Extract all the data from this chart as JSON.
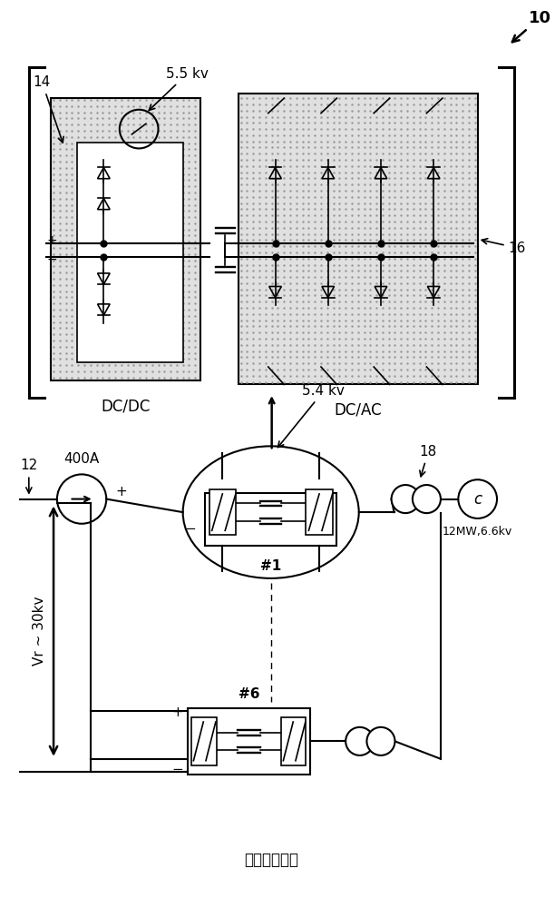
{
  "bg_color": "#ffffff",
  "line_color": "#000000",
  "dot_bg": "#e0e0e0",
  "label_10": "10",
  "label_14": "14",
  "label_55kv": "5.5 kv",
  "label_16": "16",
  "label_dcdc": "DC/DC",
  "label_dcac": "DC/AC",
  "label_54kv": "5.4 kv",
  "label_400A": "400A",
  "label_12": "12",
  "label_18": "18",
  "label_12MW": "12MW,6.6kv",
  "label_vr": "Vr ~ 30kv",
  "label_1": "#1",
  "label_6": "#6",
  "label_prior": "（现有技术）",
  "label_plus": "+",
  "label_minus": "−"
}
